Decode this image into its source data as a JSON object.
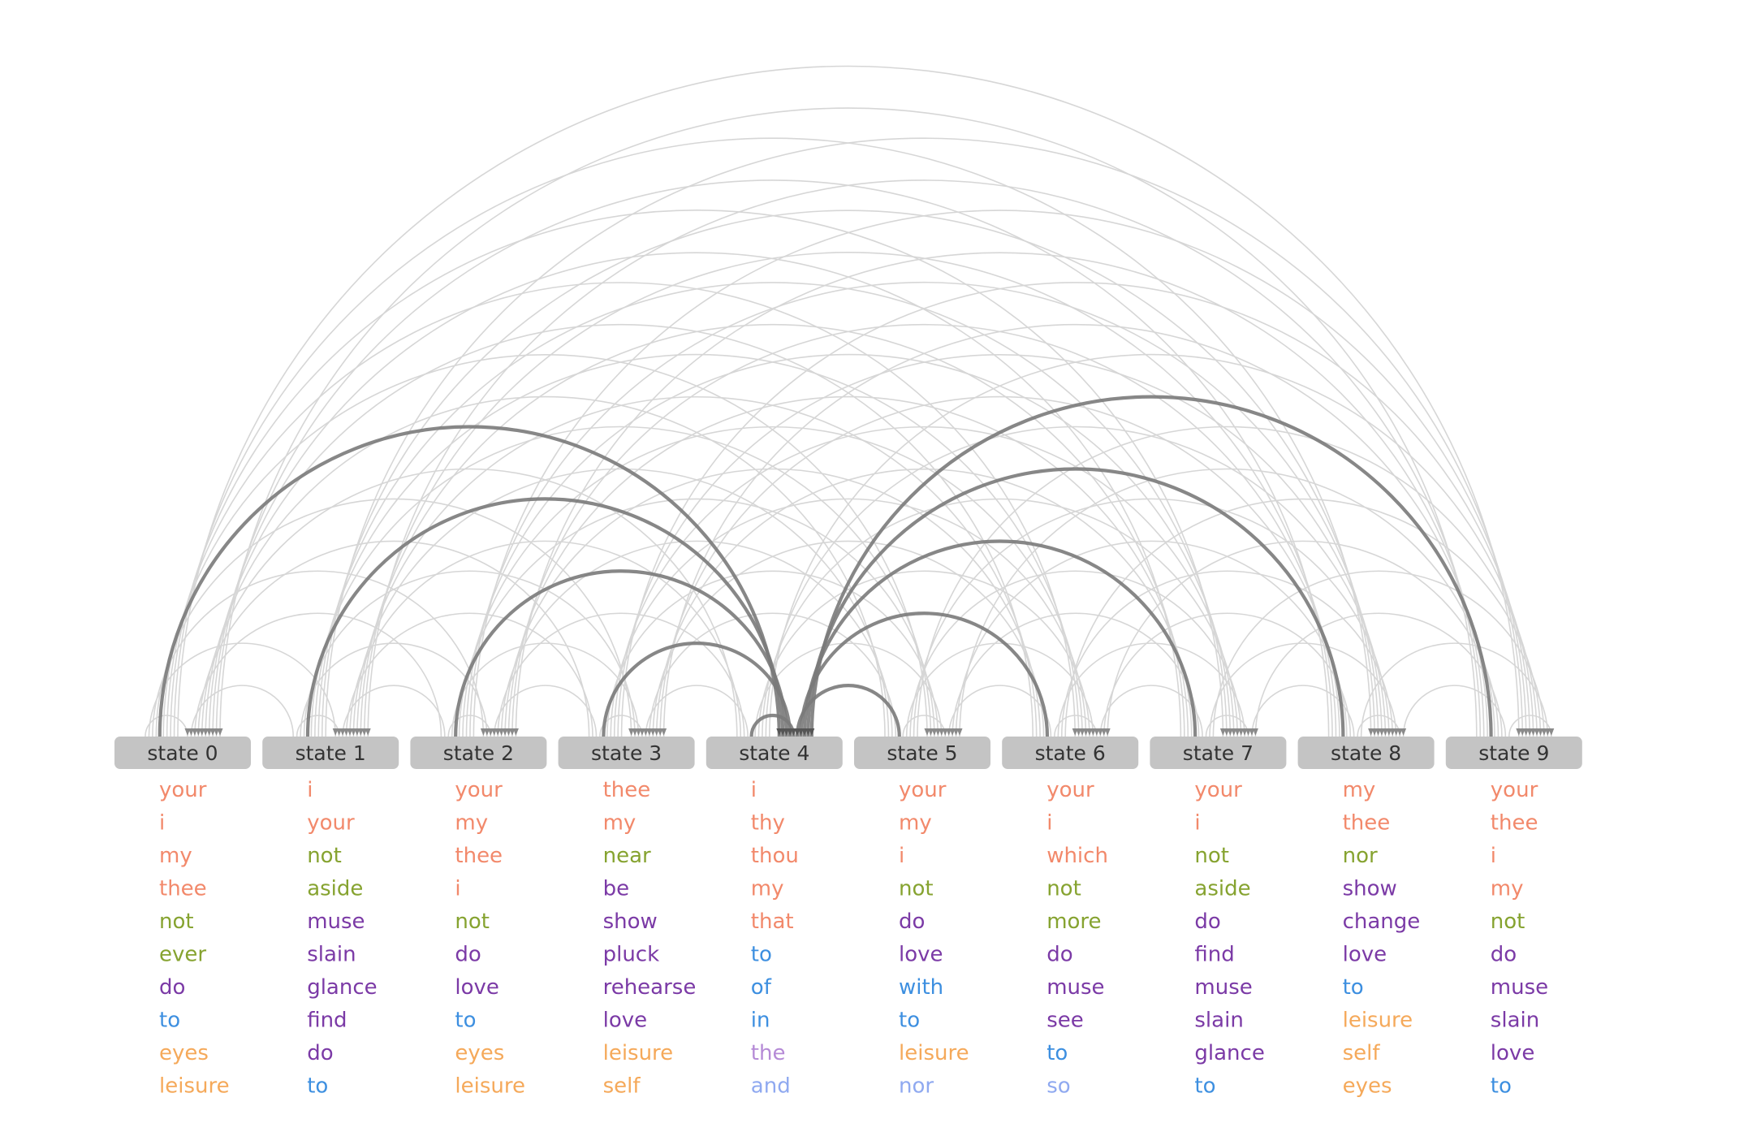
{
  "states": [
    {
      "label": "state 0",
      "words": [
        {
          "text": "your",
          "color": "#f2896b"
        },
        {
          "text": "i",
          "color": "#f2896b"
        },
        {
          "text": "my",
          "color": "#f2896b"
        },
        {
          "text": "thee",
          "color": "#f2896b"
        },
        {
          "text": "not",
          "color": "#86a330"
        },
        {
          "text": "ever",
          "color": "#86a330"
        },
        {
          "text": "do",
          "color": "#7b3aa6"
        },
        {
          "text": "to",
          "color": "#3d8fe0"
        },
        {
          "text": "eyes",
          "color": "#f5a95a"
        },
        {
          "text": "leisure",
          "color": "#f5a95a"
        }
      ]
    },
    {
      "label": "state 1",
      "words": [
        {
          "text": "i",
          "color": "#f2896b"
        },
        {
          "text": "your",
          "color": "#f2896b"
        },
        {
          "text": "not",
          "color": "#86a330"
        },
        {
          "text": "aside",
          "color": "#86a330"
        },
        {
          "text": "muse",
          "color": "#7b3aa6"
        },
        {
          "text": "slain",
          "color": "#7b3aa6"
        },
        {
          "text": "glance",
          "color": "#7b3aa6"
        },
        {
          "text": "find",
          "color": "#7b3aa6"
        },
        {
          "text": "do",
          "color": "#7b3aa6"
        },
        {
          "text": "to",
          "color": "#3d8fe0"
        }
      ]
    },
    {
      "label": "state 2",
      "words": [
        {
          "text": "your",
          "color": "#f2896b"
        },
        {
          "text": "my",
          "color": "#f2896b"
        },
        {
          "text": "thee",
          "color": "#f2896b"
        },
        {
          "text": "i",
          "color": "#f2896b"
        },
        {
          "text": "not",
          "color": "#86a330"
        },
        {
          "text": "do",
          "color": "#7b3aa6"
        },
        {
          "text": "love",
          "color": "#7b3aa6"
        },
        {
          "text": "to",
          "color": "#3d8fe0"
        },
        {
          "text": "eyes",
          "color": "#f5a95a"
        },
        {
          "text": "leisure",
          "color": "#f5a95a"
        }
      ]
    },
    {
      "label": "state 3",
      "words": [
        {
          "text": "thee",
          "color": "#f2896b"
        },
        {
          "text": "my",
          "color": "#f2896b"
        },
        {
          "text": "near",
          "color": "#86a330"
        },
        {
          "text": "be",
          "color": "#7b3aa6"
        },
        {
          "text": "show",
          "color": "#7b3aa6"
        },
        {
          "text": "pluck",
          "color": "#7b3aa6"
        },
        {
          "text": "rehearse",
          "color": "#7b3aa6"
        },
        {
          "text": "love",
          "color": "#7b3aa6"
        },
        {
          "text": "leisure",
          "color": "#f5a95a"
        },
        {
          "text": "self",
          "color": "#f5a95a"
        }
      ]
    },
    {
      "label": "state 4",
      "words": [
        {
          "text": "i",
          "color": "#f2896b"
        },
        {
          "text": "thy",
          "color": "#f2896b"
        },
        {
          "text": "thou",
          "color": "#f2896b"
        },
        {
          "text": "my",
          "color": "#f2896b"
        },
        {
          "text": "that",
          "color": "#f2896b"
        },
        {
          "text": "to",
          "color": "#3d8fe0"
        },
        {
          "text": "of",
          "color": "#3d8fe0"
        },
        {
          "text": "in",
          "color": "#3d8fe0"
        },
        {
          "text": "the",
          "color": "#b58ad6"
        },
        {
          "text": "and",
          "color": "#8fa9f0"
        }
      ]
    },
    {
      "label": "state 5",
      "words": [
        {
          "text": "your",
          "color": "#f2896b"
        },
        {
          "text": "my",
          "color": "#f2896b"
        },
        {
          "text": "i",
          "color": "#f2896b"
        },
        {
          "text": "not",
          "color": "#86a330"
        },
        {
          "text": "do",
          "color": "#7b3aa6"
        },
        {
          "text": "love",
          "color": "#7b3aa6"
        },
        {
          "text": "with",
          "color": "#3d8fe0"
        },
        {
          "text": "to",
          "color": "#3d8fe0"
        },
        {
          "text": "leisure",
          "color": "#f5a95a"
        },
        {
          "text": "nor",
          "color": "#8fa9f0"
        }
      ]
    },
    {
      "label": "state 6",
      "words": [
        {
          "text": "your",
          "color": "#f2896b"
        },
        {
          "text": "i",
          "color": "#f2896b"
        },
        {
          "text": "which",
          "color": "#f2896b"
        },
        {
          "text": "not",
          "color": "#86a330"
        },
        {
          "text": "more",
          "color": "#86a330"
        },
        {
          "text": "do",
          "color": "#7b3aa6"
        },
        {
          "text": "muse",
          "color": "#7b3aa6"
        },
        {
          "text": "see",
          "color": "#7b3aa6"
        },
        {
          "text": "to",
          "color": "#3d8fe0"
        },
        {
          "text": "so",
          "color": "#8fa9f0"
        }
      ]
    },
    {
      "label": "state 7",
      "words": [
        {
          "text": "your",
          "color": "#f2896b"
        },
        {
          "text": "i",
          "color": "#f2896b"
        },
        {
          "text": "not",
          "color": "#86a330"
        },
        {
          "text": "aside",
          "color": "#86a330"
        },
        {
          "text": "do",
          "color": "#7b3aa6"
        },
        {
          "text": "find",
          "color": "#7b3aa6"
        },
        {
          "text": "muse",
          "color": "#7b3aa6"
        },
        {
          "text": "slain",
          "color": "#7b3aa6"
        },
        {
          "text": "glance",
          "color": "#7b3aa6"
        },
        {
          "text": "to",
          "color": "#3d8fe0"
        }
      ]
    },
    {
      "label": "state 8",
      "words": [
        {
          "text": "my",
          "color": "#f2896b"
        },
        {
          "text": "thee",
          "color": "#f2896b"
        },
        {
          "text": "nor",
          "color": "#86a330"
        },
        {
          "text": "show",
          "color": "#7b3aa6"
        },
        {
          "text": "change",
          "color": "#7b3aa6"
        },
        {
          "text": "love",
          "color": "#7b3aa6"
        },
        {
          "text": "to",
          "color": "#3d8fe0"
        },
        {
          "text": "leisure",
          "color": "#f5a95a"
        },
        {
          "text": "self",
          "color": "#f5a95a"
        },
        {
          "text": "eyes",
          "color": "#f5a95a"
        }
      ]
    },
    {
      "label": "state 9",
      "words": [
        {
          "text": "your",
          "color": "#f2896b"
        },
        {
          "text": "thee",
          "color": "#f2896b"
        },
        {
          "text": "i",
          "color": "#f2896b"
        },
        {
          "text": "my",
          "color": "#f2896b"
        },
        {
          "text": "not",
          "color": "#86a330"
        },
        {
          "text": "do",
          "color": "#7b3aa6"
        },
        {
          "text": "muse",
          "color": "#7b3aa6"
        },
        {
          "text": "slain",
          "color": "#7b3aa6"
        },
        {
          "text": "love",
          "color": "#7b3aa6"
        },
        {
          "text": "to",
          "color": "#3d8fe0"
        }
      ]
    }
  ],
  "strong_transitions": [
    {
      "from": 0,
      "to": 4
    },
    {
      "from": 1,
      "to": 4
    },
    {
      "from": 2,
      "to": 4
    },
    {
      "from": 3,
      "to": 4
    },
    {
      "from": 4,
      "to": 4
    },
    {
      "from": 5,
      "to": 4
    },
    {
      "from": 6,
      "to": 4
    },
    {
      "from": 7,
      "to": 4
    },
    {
      "from": 8,
      "to": 4
    },
    {
      "from": 9,
      "to": 4
    }
  ],
  "colors": {
    "state_box": "#c4c4c4",
    "state_text": "#333333",
    "faint_arc": "#d6d6d6",
    "strong_arc": "#7a7a7a"
  }
}
